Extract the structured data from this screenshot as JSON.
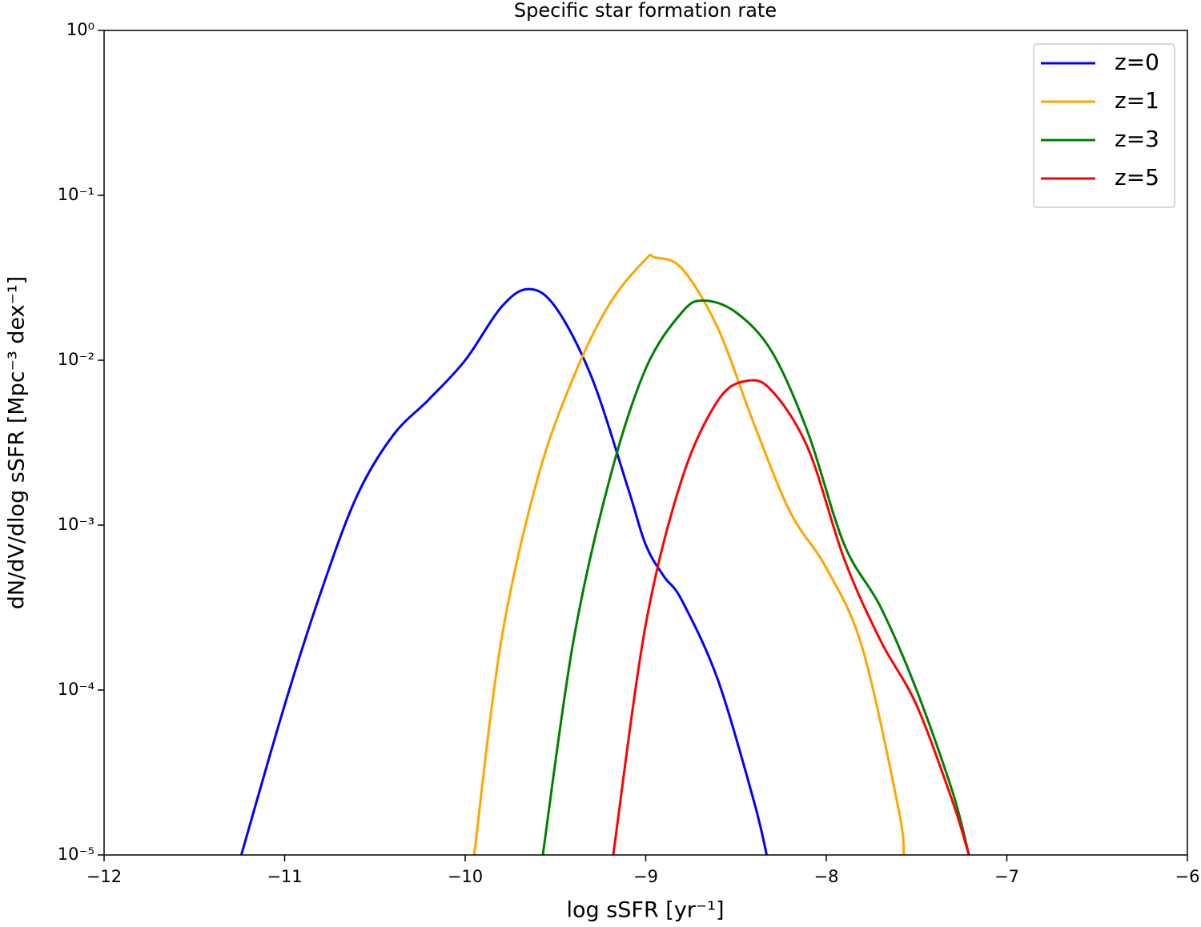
{
  "chart_data": {
    "type": "line",
    "title": "Specific star formation rate",
    "x_label": "log sSFR [yr⁻¹]",
    "y_label": "dN/dV/dlog sSFR [Mpc⁻³ dex⁻¹]",
    "xlim": [
      -12,
      -6
    ],
    "ylim": [
      1e-05,
      1
    ],
    "y_scale": "log",
    "legend": "upper right",
    "xticks": [
      {
        "value": -12,
        "label": "−12"
      },
      {
        "value": -11,
        "label": "−11"
      },
      {
        "value": -10,
        "label": "−10"
      },
      {
        "value": -9,
        "label": "−9"
      },
      {
        "value": -8,
        "label": "−8"
      },
      {
        "value": -7,
        "label": "−7"
      },
      {
        "value": -6,
        "label": "−6"
      }
    ],
    "yticks": [
      {
        "value": 1e-05,
        "label": "10⁻⁵"
      },
      {
        "value": 0.0001,
        "label": "10⁻⁴"
      },
      {
        "value": 0.001,
        "label": "10⁻³"
      },
      {
        "value": 0.01,
        "label": "10⁻²"
      },
      {
        "value": 0.1,
        "label": "10⁻¹"
      },
      {
        "value": 1,
        "label": "10⁰"
      }
    ],
    "series": [
      {
        "name": "z=0",
        "color": "#0000ff",
        "x": [
          -11.24,
          -11.0,
          -10.8,
          -10.6,
          -10.4,
          -10.2,
          -10.0,
          -9.8,
          -9.65,
          -9.5,
          -9.3,
          -9.1,
          -9.0,
          -8.9,
          -8.8,
          -8.6,
          -8.4,
          -8.33
        ],
        "values": [
          1e-05,
          8.1e-05,
          0.00039,
          0.0015,
          0.0035,
          0.0058,
          0.01,
          0.021,
          0.027,
          0.021,
          0.0079,
          0.0017,
          0.00076,
          0.00049,
          0.00035,
          0.000115,
          2.1e-05,
          1e-05
        ]
      },
      {
        "name": "z=1",
        "color": "#ffa500",
        "x": [
          -9.95,
          -9.8,
          -9.6,
          -9.4,
          -9.2,
          -9.0,
          -8.95,
          -8.8,
          -8.6,
          -8.4,
          -8.2,
          -8.0,
          -7.8,
          -7.6,
          -7.57
        ],
        "values": [
          1e-05,
          0.0002,
          0.0019,
          0.0079,
          0.022,
          0.041,
          0.042,
          0.036,
          0.0156,
          0.0041,
          0.0012,
          0.00055,
          0.00018,
          1.9e-05,
          1e-05
        ]
      },
      {
        "name": "z=3",
        "color": "#008000",
        "x": [
          -9.57,
          -9.4,
          -9.2,
          -9.0,
          -8.8,
          -8.68,
          -8.5,
          -8.3,
          -8.1,
          -7.9,
          -7.7,
          -7.5,
          -7.3,
          -7.21
        ],
        "values": [
          1e-05,
          0.0002,
          0.0019,
          0.0089,
          0.0195,
          0.023,
          0.0195,
          0.0112,
          0.0036,
          0.00076,
          0.00032,
          0.0001,
          2.4e-05,
          1e-05
        ]
      },
      {
        "name": "z=5",
        "color": "#ff0000",
        "x": [
          -9.18,
          -9.0,
          -8.8,
          -8.6,
          -8.44,
          -8.3,
          -8.1,
          -7.9,
          -7.7,
          -7.5,
          -7.3,
          -7.21
        ],
        "values": [
          1e-05,
          0.00025,
          0.0019,
          0.0057,
          0.0075,
          0.0065,
          0.0029,
          0.00062,
          0.0002,
          8.1e-05,
          2.1e-05,
          1e-05
        ]
      }
    ]
  }
}
